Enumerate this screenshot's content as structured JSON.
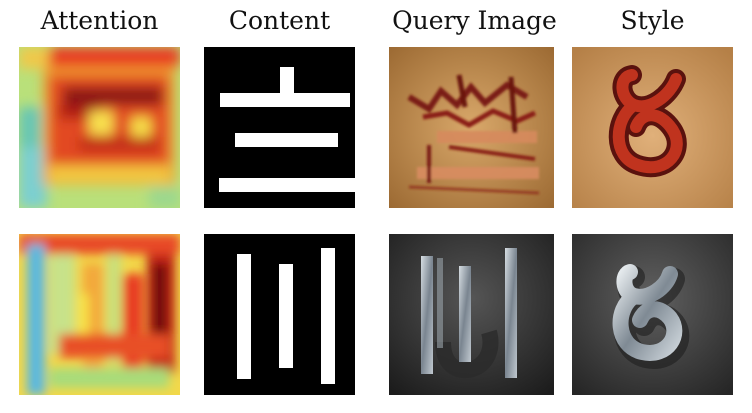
{
  "figure": {
    "columns": [
      {
        "id": "attention",
        "label": "Attention"
      },
      {
        "id": "content",
        "label": "Content"
      },
      {
        "id": "query",
        "label": "Query Image"
      },
      {
        "id": "style",
        "label": "Style"
      }
    ],
    "rows": [
      {
        "id": "row1",
        "content_glyph": "horizontal-bars-glyph",
        "style_glyph": "loop-glyph",
        "style_material": "red-ink-on-parchment"
      },
      {
        "id": "row2",
        "content_glyph": "vertical-bars-glyph",
        "style_glyph": "loop-glyph",
        "style_material": "brushed-metal"
      }
    ]
  }
}
